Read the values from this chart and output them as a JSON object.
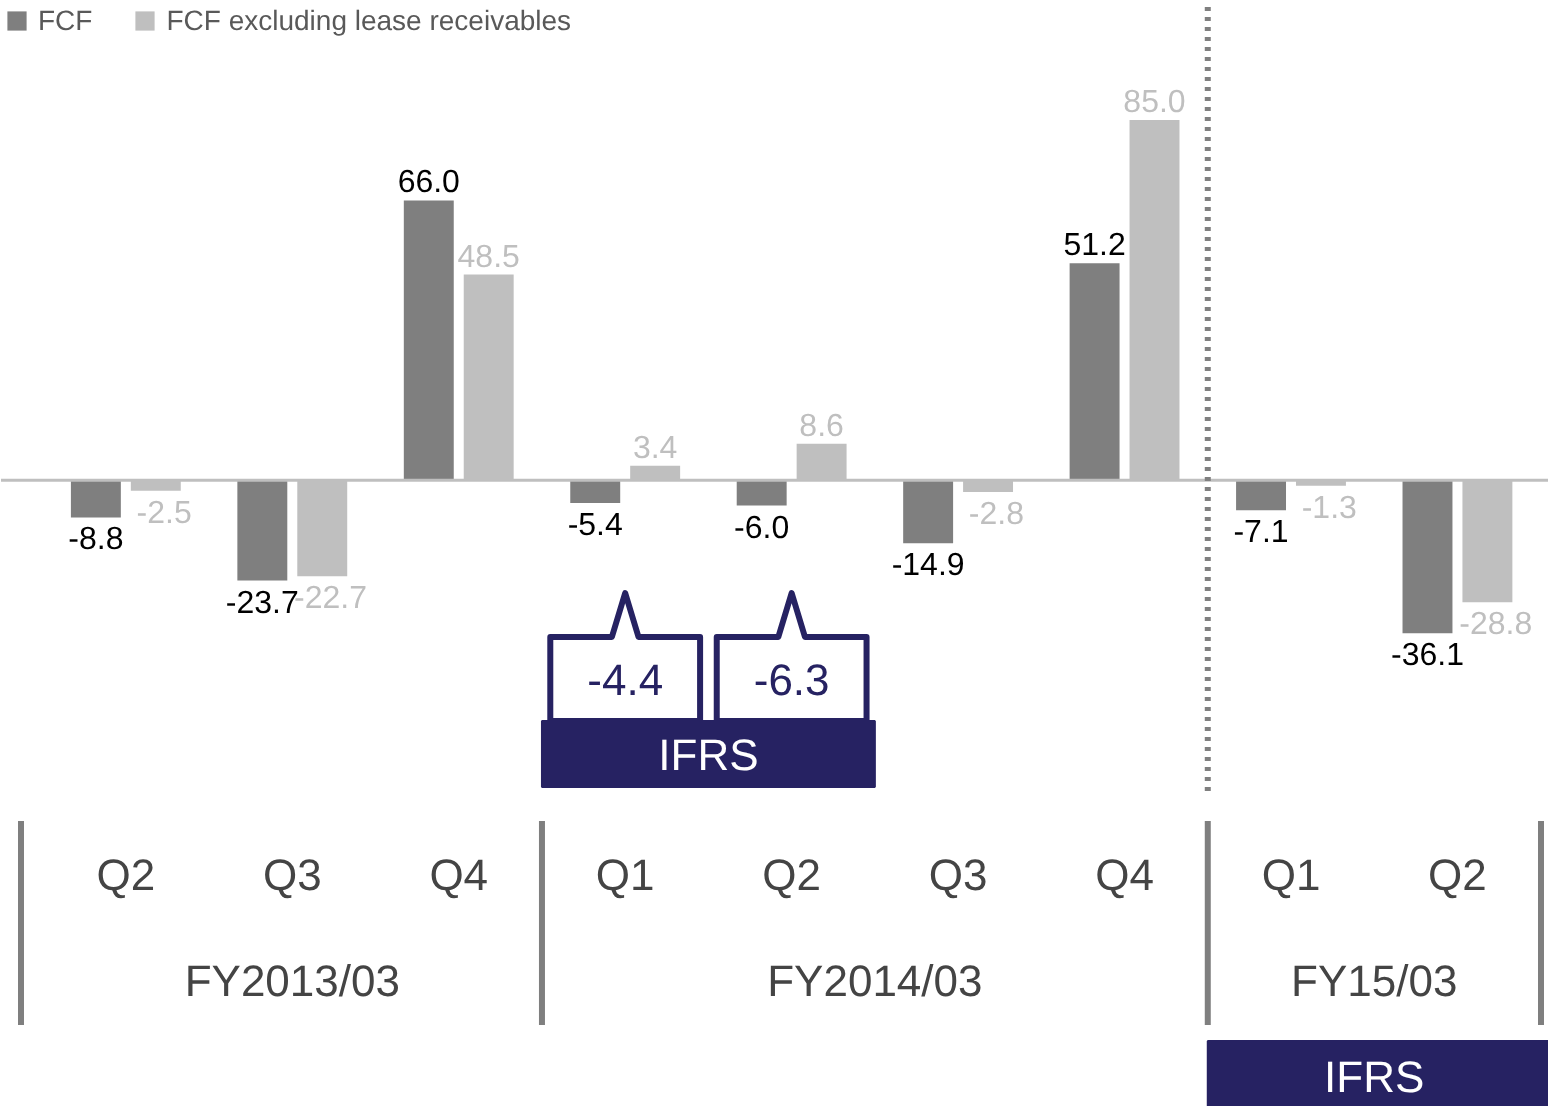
{
  "chart_data": {
    "type": "bar",
    "categories": [
      "Q2",
      "Q3",
      "Q4",
      "Q1",
      "Q2",
      "Q3",
      "Q4",
      "Q1",
      "Q2"
    ],
    "series": [
      {
        "name": "FCF",
        "color": "#7f7f7f",
        "values": [
          -8.8,
          -23.7,
          66.0,
          -5.4,
          -6.0,
          -14.9,
          51.2,
          -7.1,
          -36.1
        ],
        "value_labels": [
          "-8.8",
          "-23.7",
          "66.0",
          "-5.4",
          "-6.0",
          "-14.9",
          "51.2",
          "-7.1",
          "-36.1"
        ]
      },
      {
        "name": "FCF excluding lease receivables",
        "color": "#bfbfbf",
        "values": [
          -2.5,
          -22.7,
          48.5,
          3.4,
          8.6,
          -2.8,
          85.0,
          -1.3,
          -28.8
        ],
        "value_labels": [
          "-2.5",
          "-22.7",
          "48.5",
          "3.4",
          "8.6",
          "-2.8",
          "85.0",
          "-1.3",
          "-28.8"
        ]
      }
    ],
    "annotations": [
      "-4.4",
      "-6.3",
      "IFRS",
      "FY2013/03",
      "FY2014/03",
      "FY15/03",
      "IFRS"
    ],
    "legend": "top left"
  }
}
